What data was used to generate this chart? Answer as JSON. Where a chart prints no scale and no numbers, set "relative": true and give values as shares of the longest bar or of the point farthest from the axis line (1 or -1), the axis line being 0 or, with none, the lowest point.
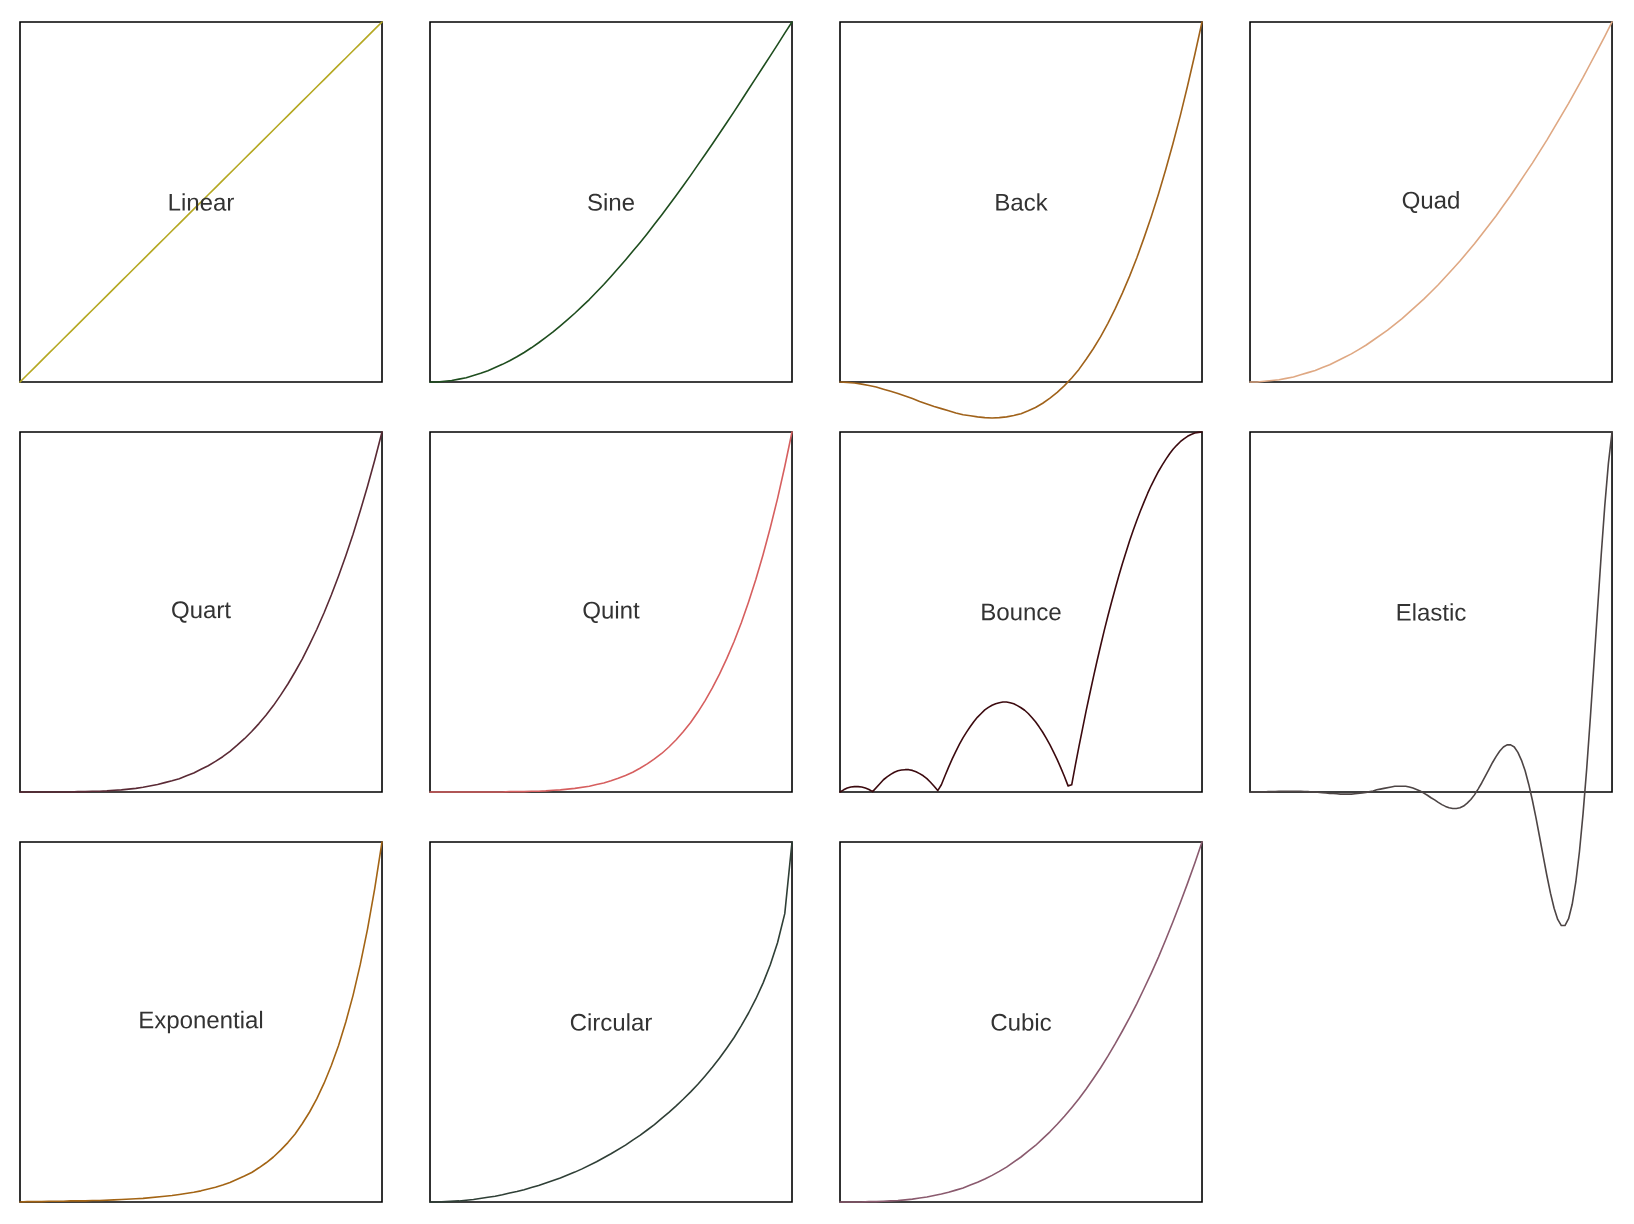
{
  "chart_data": [
    {
      "type": "line",
      "title": "Linear",
      "color": "#b5a822",
      "relative": true,
      "categories": [
        null,
        null,
        null,
        null,
        null,
        null,
        null,
        null,
        null,
        null,
        null,
        null,
        null,
        null,
        null,
        null,
        null,
        null,
        null,
        null,
        null,
        null,
        null,
        null,
        null,
        null,
        null,
        null,
        null,
        null,
        null,
        null,
        null,
        null,
        null,
        null,
        null,
        null,
        null,
        null,
        null,
        null,
        null,
        null,
        null,
        null,
        null,
        null,
        null,
        null,
        null
      ],
      "values": [
        0,
        0.02,
        0.04,
        0.06,
        0.08,
        0.1,
        0.12,
        0.14,
        0.16,
        0.18,
        0.2,
        0.22,
        0.24,
        0.26,
        0.28,
        0.3,
        0.32,
        0.34,
        0.36,
        0.38,
        0.4,
        0.42,
        0.44,
        0.46,
        0.48,
        0.5,
        0.52,
        0.54,
        0.56,
        0.58,
        0.6,
        0.62,
        0.64,
        0.66,
        0.68,
        0.7,
        0.72,
        0.74,
        0.76,
        0.78,
        0.8,
        0.82,
        0.84,
        0.86,
        0.88,
        0.9,
        0.92,
        0.94,
        0.96,
        0.98,
        1
      ]
    },
    {
      "type": "line",
      "title": "Sine",
      "color": "#1e4d1e",
      "relative": true,
      "categories": [
        null,
        null,
        null,
        null,
        null,
        null,
        null,
        null,
        null,
        null,
        null,
        null,
        null,
        null,
        null,
        null,
        null,
        null,
        null,
        null,
        null,
        null,
        null,
        null,
        null,
        null,
        null,
        null,
        null,
        null,
        null,
        null,
        null,
        null,
        null,
        null,
        null,
        null,
        null,
        null,
        null,
        null,
        null,
        null,
        null,
        null,
        null,
        null,
        null,
        null,
        null
      ],
      "values": [
        0,
        0,
        0.002,
        0.004,
        0.008,
        0.012,
        0.018,
        0.024,
        0.031,
        0.04,
        0.049,
        0.059,
        0.07,
        0.082,
        0.095,
        0.109,
        0.124,
        0.139,
        0.156,
        0.173,
        0.191,
        0.21,
        0.229,
        0.25,
        0.271,
        0.293,
        0.316,
        0.339,
        0.363,
        0.387,
        0.412,
        0.438,
        0.464,
        0.491,
        0.518,
        0.546,
        0.574,
        0.603,
        0.632,
        0.661,
        0.691,
        0.721,
        0.751,
        0.782,
        0.813,
        0.844,
        0.875,
        0.906,
        0.937,
        0.969,
        1
      ]
    },
    {
      "type": "line",
      "title": "Back",
      "color": "#a0621a",
      "relative": true,
      "categories": [
        null,
        null,
        null,
        null,
        null,
        null,
        null,
        null,
        null,
        null,
        null,
        null,
        null,
        null,
        null,
        null,
        null,
        null,
        null,
        null,
        null,
        null,
        null,
        null,
        null,
        null,
        null,
        null,
        null,
        null,
        null,
        null,
        null,
        null,
        null,
        null,
        null,
        null,
        null,
        null,
        null,
        null,
        null,
        null,
        null,
        null,
        null,
        null,
        null,
        null,
        null
      ],
      "values": [
        0,
        -0.001,
        -0.003,
        -0.006,
        -0.01,
        -0.014,
        -0.02,
        -0.026,
        -0.032,
        -0.039,
        -0.046,
        -0.054,
        -0.061,
        -0.068,
        -0.074,
        -0.08,
        -0.086,
        -0.091,
        -0.094,
        -0.097,
        -0.099,
        -0.1,
        -0.099,
        -0.097,
        -0.093,
        -0.088,
        -0.08,
        -0.071,
        -0.059,
        -0.045,
        -0.029,
        -0.01,
        0.011,
        0.035,
        0.063,
        0.093,
        0.126,
        0.163,
        0.203,
        0.247,
        0.294,
        0.345,
        0.401,
        0.46,
        0.523,
        0.591,
        0.663,
        0.74,
        0.822,
        0.909,
        1
      ]
    },
    {
      "type": "line",
      "title": "Quad",
      "color": "#dfa883",
      "relative": true,
      "categories": [
        null,
        null,
        null,
        null,
        null,
        null,
        null,
        null,
        null,
        null,
        null,
        null,
        null,
        null,
        null,
        null,
        null,
        null,
        null,
        null,
        null,
        null,
        null,
        null,
        null,
        null,
        null,
        null,
        null,
        null,
        null,
        null,
        null,
        null,
        null,
        null,
        null,
        null,
        null,
        null,
        null,
        null,
        null,
        null,
        null,
        null,
        null,
        null,
        null,
        null,
        null
      ],
      "values": [
        0,
        0,
        0.002,
        0.004,
        0.006,
        0.01,
        0.014,
        0.02,
        0.026,
        0.032,
        0.04,
        0.048,
        0.058,
        0.068,
        0.078,
        0.09,
        0.102,
        0.116,
        0.13,
        0.144,
        0.16,
        0.176,
        0.194,
        0.212,
        0.23,
        0.25,
        0.27,
        0.292,
        0.314,
        0.336,
        0.36,
        0.384,
        0.41,
        0.436,
        0.462,
        0.49,
        0.518,
        0.548,
        0.578,
        0.608,
        0.64,
        0.672,
        0.706,
        0.74,
        0.774,
        0.81,
        0.846,
        0.884,
        0.922,
        0.96,
        1
      ]
    },
    {
      "type": "line",
      "title": "Quart",
      "color": "#5a2a35",
      "relative": true,
      "categories": [
        null,
        null,
        null,
        null,
        null,
        null,
        null,
        null,
        null,
        null,
        null,
        null,
        null,
        null,
        null,
        null,
        null,
        null,
        null,
        null,
        null,
        null,
        null,
        null,
        null,
        null,
        null,
        null,
        null,
        null,
        null,
        null,
        null,
        null,
        null,
        null,
        null,
        null,
        null,
        null,
        null,
        null,
        null,
        null,
        null,
        null,
        null,
        null,
        null,
        null,
        null
      ],
      "values": [
        0,
        0,
        0,
        0,
        0,
        0,
        0,
        0,
        0.001,
        0.001,
        0.002,
        0.002,
        0.003,
        0.005,
        0.006,
        0.008,
        0.01,
        0.013,
        0.017,
        0.021,
        0.026,
        0.031,
        0.037,
        0.045,
        0.053,
        0.063,
        0.073,
        0.085,
        0.098,
        0.113,
        0.13,
        0.148,
        0.168,
        0.19,
        0.214,
        0.24,
        0.269,
        0.3,
        0.334,
        0.37,
        0.41,
        0.452,
        0.498,
        0.547,
        0.6,
        0.656,
        0.716,
        0.781,
        0.849,
        0.922,
        1
      ]
    },
    {
      "type": "line",
      "title": "Quint",
      "color": "#d65f5f",
      "relative": true,
      "categories": [
        null,
        null,
        null,
        null,
        null,
        null,
        null,
        null,
        null,
        null,
        null,
        null,
        null,
        null,
        null,
        null,
        null,
        null,
        null,
        null,
        null,
        null,
        null,
        null,
        null,
        null,
        null,
        null,
        null,
        null,
        null,
        null,
        null,
        null,
        null,
        null,
        null,
        null,
        null,
        null,
        null,
        null,
        null,
        null,
        null,
        null,
        null,
        null,
        null,
        null,
        null
      ],
      "values": [
        0,
        0,
        0,
        0,
        0,
        0,
        0,
        0,
        0,
        0,
        0,
        0.001,
        0.001,
        0.001,
        0.002,
        0.002,
        0.003,
        0.005,
        0.006,
        0.008,
        0.01,
        0.013,
        0.016,
        0.021,
        0.025,
        0.031,
        0.038,
        0.046,
        0.055,
        0.066,
        0.078,
        0.092,
        0.107,
        0.125,
        0.145,
        0.168,
        0.193,
        0.222,
        0.254,
        0.289,
        0.328,
        0.371,
        0.418,
        0.47,
        0.528,
        0.59,
        0.659,
        0.734,
        0.815,
        0.904,
        1
      ]
    },
    {
      "type": "line",
      "title": "Bounce",
      "color": "#3c0a0f",
      "relative": true,
      "categories": [
        null,
        null,
        null,
        null,
        null,
        null,
        null,
        null,
        null,
        null,
        null,
        null,
        null,
        null,
        null,
        null,
        null,
        null,
        null,
        null,
        null,
        null,
        null,
        null,
        null,
        null,
        null,
        null,
        null,
        null,
        null,
        null,
        null,
        null,
        null,
        null,
        null,
        null,
        null,
        null,
        null,
        null,
        null,
        null,
        null,
        null,
        null,
        null,
        null,
        null,
        null,
        null,
        null,
        null,
        null,
        null,
        null,
        null,
        null,
        null,
        null,
        null,
        null,
        null,
        null,
        null,
        null,
        null,
        null,
        null,
        null,
        null,
        null,
        null,
        null,
        null,
        null,
        null,
        null,
        null,
        null,
        null,
        null,
        null,
        null,
        null,
        null,
        null,
        null,
        null,
        null,
        null,
        null,
        null,
        null,
        null,
        null,
        null,
        null,
        null,
        null
      ],
      "values": [
        0,
        0.006,
        0.011,
        0.014,
        0.015,
        0.015,
        0.014,
        0.011,
        0.007,
        0.001,
        0.012,
        0.023,
        0.034,
        0.042,
        0.049,
        0.055,
        0.059,
        0.061,
        0.062,
        0.062,
        0.06,
        0.056,
        0.051,
        0.045,
        0.037,
        0.027,
        0.016,
        0.004,
        0.02,
        0.045,
        0.069,
        0.092,
        0.113,
        0.133,
        0.151,
        0.167,
        0.182,
        0.196,
        0.208,
        0.218,
        0.228,
        0.235,
        0.241,
        0.245,
        0.248,
        0.25,
        0.25,
        0.248,
        0.245,
        0.24,
        0.234,
        0.227,
        0.218,
        0.207,
        0.195,
        0.181,
        0.166,
        0.149,
        0.131,
        0.111,
        0.09,
        0.067,
        0.043,
        0.017,
        0.02,
        0.074,
        0.126,
        0.176,
        0.226,
        0.273,
        0.319,
        0.364,
        0.407,
        0.449,
        0.489,
        0.527,
        0.564,
        0.6,
        0.634,
        0.666,
        0.698,
        0.727,
        0.755,
        0.781,
        0.806,
        0.83,
        0.852,
        0.872,
        0.891,
        0.908,
        0.924,
        0.939,
        0.952,
        0.963,
        0.973,
        0.981,
        0.988,
        0.993,
        0.997,
        0.999,
        1
      ]
    },
    {
      "type": "line",
      "title": "Elastic",
      "color": "#4d4545",
      "relative": true,
      "categories": [
        null,
        null,
        null,
        null,
        null,
        null,
        null,
        null,
        null,
        null,
        null,
        null,
        null,
        null,
        null,
        null,
        null,
        null,
        null,
        null,
        null,
        null,
        null,
        null,
        null,
        null,
        null,
        null,
        null,
        null,
        null,
        null,
        null,
        null,
        null,
        null,
        null,
        null,
        null,
        null,
        null,
        null,
        null,
        null,
        null,
        null,
        null,
        null,
        null,
        null,
        null,
        null,
        null,
        null,
        null,
        null,
        null,
        null,
        null,
        null,
        null,
        null,
        null,
        null,
        null,
        null,
        null,
        null,
        null,
        null,
        null,
        null,
        null,
        null,
        null,
        null,
        null,
        null,
        null,
        null,
        null,
        null,
        null,
        null,
        null,
        null,
        null,
        null,
        null,
        null,
        null,
        null,
        null,
        null,
        null,
        null,
        null,
        null,
        null,
        null,
        null
      ],
      "values": [
        0,
        0,
        0,
        0,
        0,
        0.001,
        0.001,
        0.001,
        0.002,
        0.002,
        0.002,
        0.002,
        0.002,
        0.002,
        0.002,
        0.001,
        0.001,
        0,
        0,
        -0.001,
        -0.002,
        -0.003,
        -0.004,
        -0.004,
        -0.005,
        -0.006,
        -0.006,
        -0.006,
        -0.006,
        -0.005,
        -0.004,
        -0.003,
        -0.001,
        0.001,
        0.003,
        0.006,
        0.008,
        0.01,
        0.012,
        0.014,
        0.016,
        0.016,
        0.016,
        0.016,
        0.014,
        0.011,
        0.007,
        0.003,
        -0.003,
        -0.009,
        -0.016,
        -0.022,
        -0.029,
        -0.035,
        -0.04,
        -0.044,
        -0.046,
        -0.046,
        -0.044,
        -0.039,
        -0.031,
        -0.021,
        -0.008,
        0.008,
        0.025,
        0.044,
        0.063,
        0.082,
        0.099,
        0.114,
        0.125,
        0.131,
        0.131,
        0.125,
        0.11,
        0.088,
        0.059,
        0.021,
        -0.023,
        -0.072,
        -0.125,
        -0.179,
        -0.232,
        -0.281,
        -0.323,
        -0.354,
        -0.371,
        -0.371,
        -0.352,
        -0.312,
        -0.25,
        -0.166,
        -0.06,
        0.064,
        0.204,
        0.354,
        0.507,
        0.657,
        0.795,
        0.913,
        1
      ]
    },
    {
      "type": "line",
      "title": "Exponential",
      "color": "#a36414",
      "relative": true,
      "categories": [
        null,
        null,
        null,
        null,
        null,
        null,
        null,
        null,
        null,
        null,
        null,
        null,
        null,
        null,
        null,
        null,
        null,
        null,
        null,
        null,
        null,
        null,
        null,
        null,
        null,
        null,
        null,
        null,
        null,
        null,
        null,
        null,
        null,
        null,
        null,
        null,
        null,
        null,
        null,
        null,
        null,
        null,
        null,
        null,
        null,
        null,
        null,
        null,
        null,
        null,
        null
      ],
      "values": [
        0,
        0.001,
        0.001,
        0.001,
        0.002,
        0.002,
        0.002,
        0.003,
        0.003,
        0.003,
        0.004,
        0.004,
        0.005,
        0.006,
        0.007,
        0.008,
        0.009,
        0.01,
        0.012,
        0.014,
        0.016,
        0.018,
        0.021,
        0.024,
        0.027,
        0.031,
        0.036,
        0.041,
        0.047,
        0.054,
        0.063,
        0.072,
        0.082,
        0.095,
        0.109,
        0.125,
        0.144,
        0.165,
        0.189,
        0.218,
        0.25,
        0.287,
        0.33,
        0.379,
        0.435,
        0.5,
        0.574,
        0.66,
        0.758,
        0.871,
        1
      ]
    },
    {
      "type": "line",
      "title": "Circular",
      "color": "#2f3f36",
      "relative": true,
      "categories": [
        null,
        null,
        null,
        null,
        null,
        null,
        null,
        null,
        null,
        null,
        null,
        null,
        null,
        null,
        null,
        null,
        null,
        null,
        null,
        null,
        null,
        null,
        null,
        null,
        null,
        null,
        null,
        null,
        null,
        null,
        null,
        null,
        null,
        null,
        null,
        null,
        null,
        null,
        null,
        null,
        null,
        null,
        null,
        null,
        null,
        null,
        null,
        null,
        null,
        null,
        null
      ],
      "values": [
        0,
        0,
        0.001,
        0.002,
        0.003,
        0.005,
        0.007,
        0.01,
        0.013,
        0.016,
        0.02,
        0.025,
        0.029,
        0.034,
        0.04,
        0.046,
        0.053,
        0.06,
        0.067,
        0.075,
        0.083,
        0.092,
        0.102,
        0.112,
        0.123,
        0.134,
        0.146,
        0.158,
        0.172,
        0.185,
        0.2,
        0.215,
        0.232,
        0.249,
        0.267,
        0.286,
        0.306,
        0.327,
        0.35,
        0.374,
        0.4,
        0.428,
        0.457,
        0.49,
        0.525,
        0.564,
        0.608,
        0.659,
        0.72,
        0.801,
        1
      ]
    },
    {
      "type": "line",
      "title": "Cubic",
      "color": "#8a5a6e",
      "relative": true,
      "categories": [
        null,
        null,
        null,
        null,
        null,
        null,
        null,
        null,
        null,
        null,
        null,
        null,
        null,
        null,
        null,
        null,
        null,
        null,
        null,
        null,
        null,
        null,
        null,
        null,
        null,
        null,
        null,
        null,
        null,
        null,
        null,
        null,
        null,
        null,
        null,
        null,
        null,
        null,
        null,
        null,
        null,
        null,
        null,
        null,
        null,
        null,
        null,
        null,
        null,
        null,
        null
      ],
      "values": [
        0,
        0,
        0,
        0,
        0.001,
        0.001,
        0.002,
        0.003,
        0.004,
        0.006,
        0.008,
        0.011,
        0.014,
        0.018,
        0.022,
        0.027,
        0.033,
        0.039,
        0.047,
        0.055,
        0.064,
        0.074,
        0.085,
        0.097,
        0.111,
        0.125,
        0.141,
        0.157,
        0.176,
        0.195,
        0.216,
        0.238,
        0.262,
        0.287,
        0.314,
        0.343,
        0.373,
        0.405,
        0.439,
        0.475,
        0.512,
        0.551,
        0.593,
        0.636,
        0.681,
        0.729,
        0.779,
        0.831,
        0.885,
        0.941,
        1
      ]
    }
  ]
}
